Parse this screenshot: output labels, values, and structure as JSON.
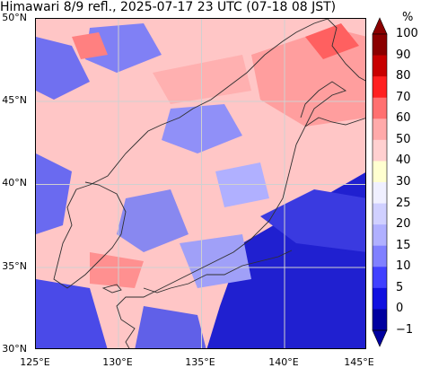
{
  "title": "Himawari 8/9 refl., 2025-07-17 23 UTC (07-18 08 JST)",
  "lat_labels": [
    "50°N",
    "45°N",
    "40°N",
    "35°N",
    "30°N"
  ],
  "lon_labels": [
    "125°E",
    "130°E",
    "135°E",
    "140°E",
    "145°E"
  ],
  "colorbar": {
    "unit": "%",
    "ticks": [
      "100",
      "90",
      "80",
      "70",
      "60",
      "50",
      "40",
      "30",
      "25",
      "20",
      "15",
      "10",
      "5",
      "0",
      "−1"
    ],
    "colors": [
      "#8b0000",
      "#c80000",
      "#ff2020",
      "#ff7070",
      "#ffaaaa",
      "#ffd0d0",
      "#ffffd0",
      "#f0f0ff",
      "#d0d0ff",
      "#b0b0ff",
      "#8080ff",
      "#4040ff",
      "#1010e0",
      "#0000a0"
    ]
  }
}
